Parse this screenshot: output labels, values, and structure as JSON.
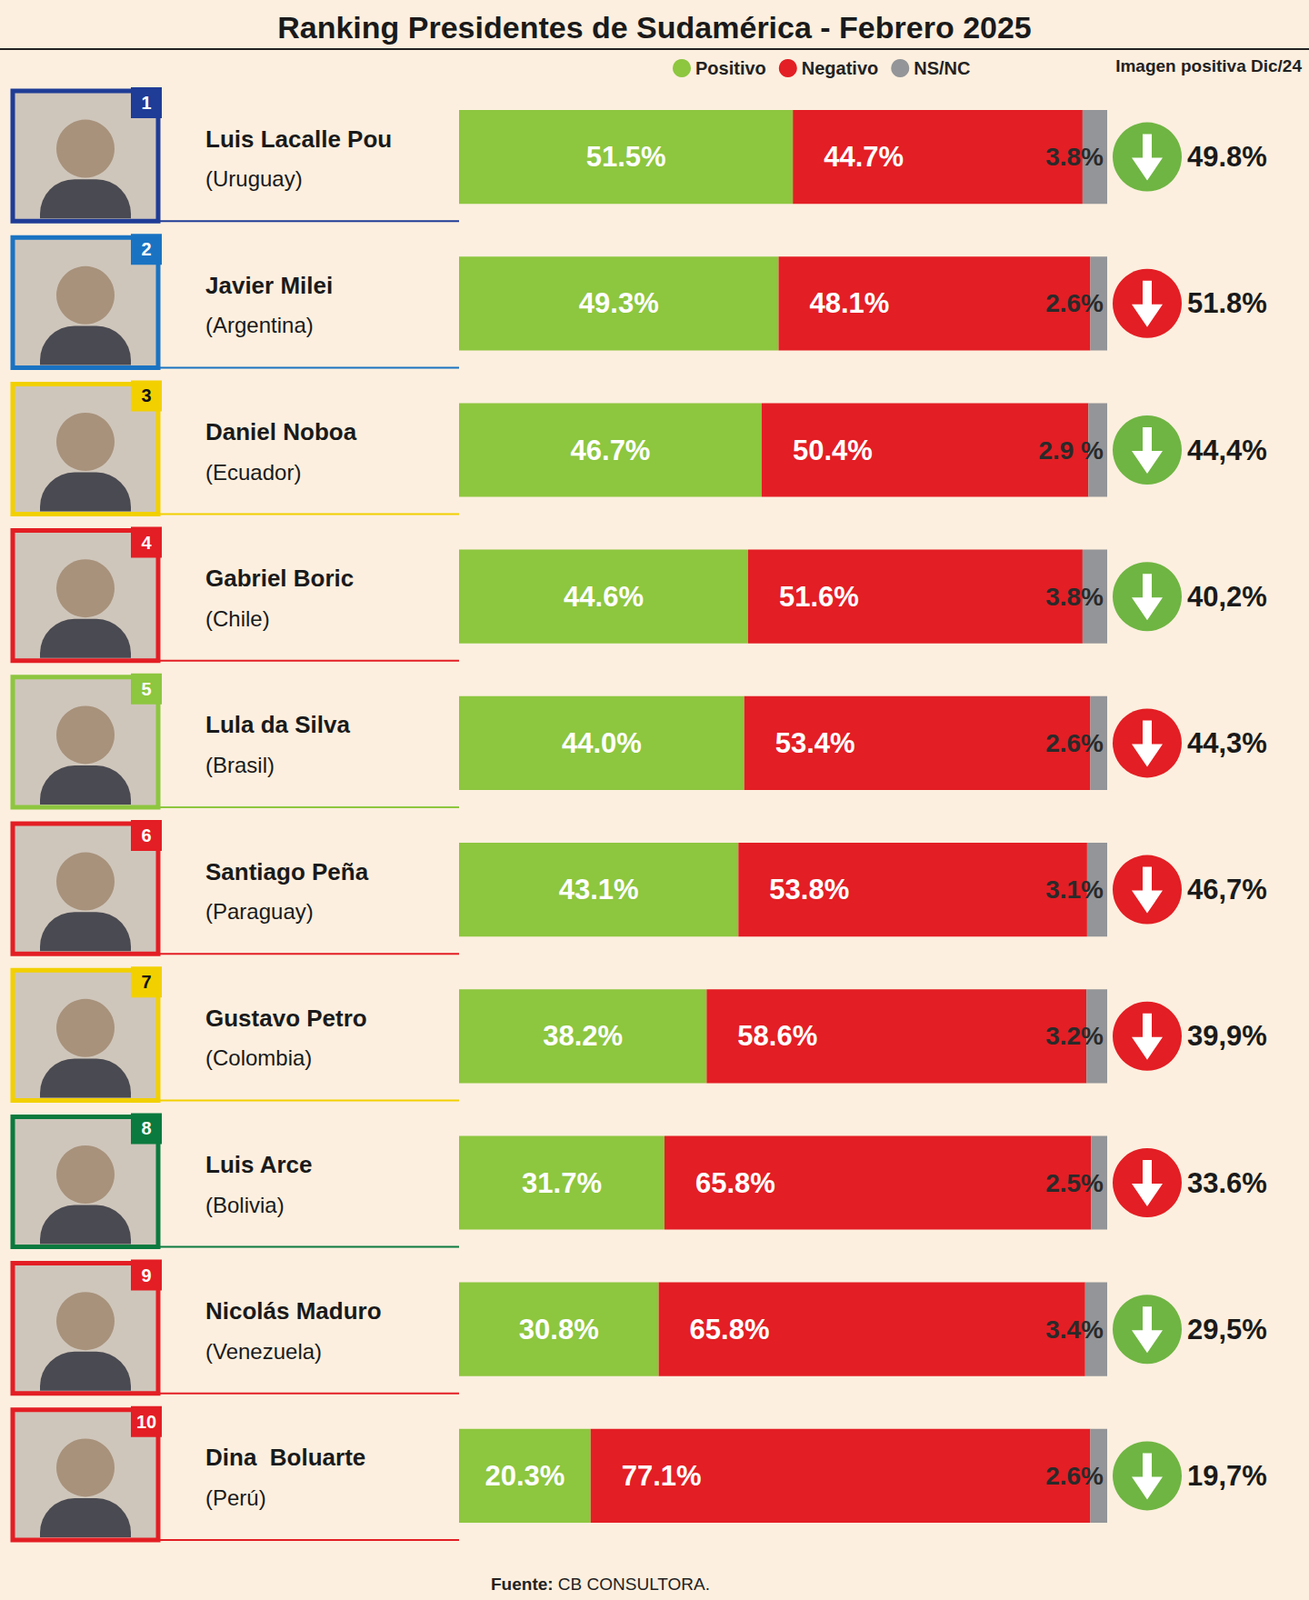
{
  "chart_data": {
    "type": "bar",
    "title": "Ranking Presidentes de Sudamérica - Febrero 2025",
    "orientation": "horizontal",
    "stacked": true,
    "data_labels": true,
    "legend": "top",
    "tick_labels": false,
    "xlim": [
      0,
      100
    ],
    "categories": [
      "Luis Lacalle Pou",
      "Javier Milei",
      "Daniel Noboa",
      "Gabriel Boric",
      "Lula da Silva",
      "Santiago Peña",
      "Gustavo Petro",
      "Luis Arce",
      "Nicolás Maduro",
      "Dina  Boluarte"
    ],
    "countries": [
      "(Uruguay)",
      "(Argentina)",
      "(Ecuador)",
      "(Chile)",
      "(Brasil)",
      "(Paraguay)",
      "(Colombia)",
      "(Bolivia)",
      "(Venezuela)",
      "(Perú)"
    ],
    "ranks": [
      1,
      2,
      3,
      4,
      5,
      6,
      7,
      8,
      9,
      10
    ],
    "series": [
      {
        "name": "Positivo",
        "color": "#8dc63f",
        "values": [
          51.5,
          49.3,
          46.7,
          44.6,
          44.0,
          43.1,
          38.2,
          31.7,
          30.8,
          20.3
        ],
        "value_labels": [
          "51.5%",
          "49.3%",
          "46.7%",
          "44.6%",
          "44.0%",
          "43.1%",
          "38.2%",
          "31.7%",
          "30.8%",
          "20.3%"
        ]
      },
      {
        "name": "Negativo",
        "color": "#e31e24",
        "values": [
          44.7,
          48.1,
          50.4,
          51.6,
          53.4,
          53.8,
          58.6,
          65.8,
          65.8,
          77.1
        ],
        "value_labels": [
          "44.7%",
          "48.1%",
          "50.4%",
          "51.6%",
          "53.4%",
          "53.8%",
          "58.6%",
          "65.8%",
          "65.8%",
          "77.1%"
        ]
      },
      {
        "name": "NS/NC",
        "color": "#939598",
        "values": [
          3.8,
          2.6,
          2.9,
          3.8,
          2.6,
          3.1,
          3.2,
          2.5,
          3.4,
          2.6
        ],
        "value_labels": [
          "3.8%",
          "2.6%",
          "2.9 %",
          "3.8%",
          "2.6%",
          "3.1%",
          "3.2%",
          "2.5%",
          "3.4%",
          "2.6%"
        ]
      }
    ],
    "previous": {
      "name": "Imagen positiva Dic/24",
      "values": [
        49.8,
        51.8,
        44.4,
        40.2,
        44.3,
        46.7,
        39.9,
        33.6,
        29.5,
        19.7
      ],
      "value_labels": [
        "49.8%",
        "51.8%",
        "44,4%",
        "40,2%",
        "44,3%",
        "46,7%",
        "39,9%",
        "33.6%",
        "29,5%",
        "19,7%"
      ],
      "colors": [
        "#6fb543",
        "#e31e24",
        "#6fb543",
        "#6fb543",
        "#e31e24",
        "#e31e24",
        "#e31e24",
        "#e31e24",
        "#6fb543",
        "#6fb543"
      ]
    },
    "source": "Fuente: CB CONSULTORA."
  }
}
